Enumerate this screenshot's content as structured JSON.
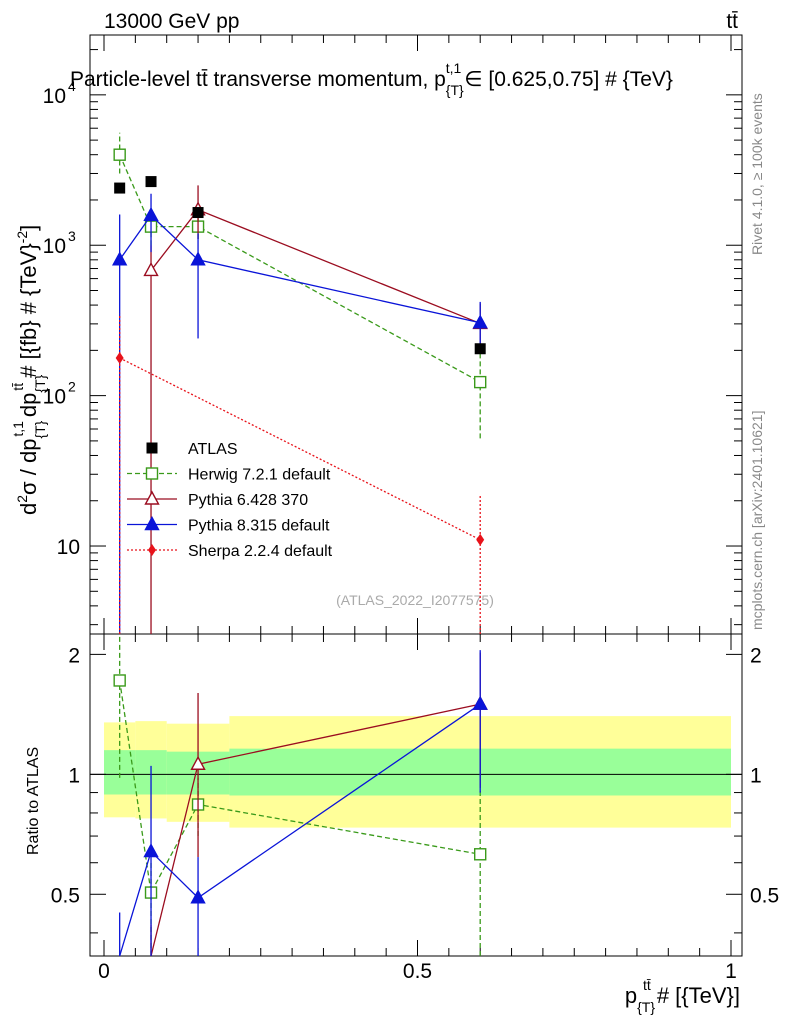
{
  "header": {
    "left": "13000 GeV pp",
    "right": "tt̄"
  },
  "title": {
    "main": "Particle-level tt̄ transverse momentum, p",
    "sub1": "{T}",
    "sup1": "t,1",
    "rest": "∈ [0.625,0.75] # {TeV}"
  },
  "side_labels": {
    "rivet": "Rivet 4.1.0, ≥ 100k events",
    "mcplots": "mcplots.cern.ch [arXiv:2401.10621]"
  },
  "watermark": "(ATLAS_2022_I2077575)",
  "ylabel_main": {
    "a": "d",
    "a_sup": "2",
    "b": "σ / dp",
    "b_sub": "{T}",
    "b_sup": "t,1",
    "c": "dp",
    "c_sub": "{T}",
    "c_sup": "tt̄",
    "d": "# [{fb} # {TeV}",
    "d_sup": "-2",
    "e": "]"
  },
  "ylabel_ratio": "Ratio to ATLAS",
  "xlabel": {
    "a": "p",
    "a_sub": "{T}",
    "a_sup": "tt̄",
    "b": "# [{TeV}]"
  },
  "main_ticks": {
    "labels": [
      {
        "value": 10,
        "text": "10"
      },
      {
        "value": 100,
        "base": "10",
        "exp": "2"
      },
      {
        "value": 1000,
        "base": "10",
        "exp": "3"
      },
      {
        "value": 10000,
        "base": "10",
        "exp": "4"
      }
    ]
  },
  "ratio_ticks": [
    {
      "value": 0.5,
      "text": "0.5"
    },
    {
      "value": 1,
      "text": "1"
    },
    {
      "value": 2,
      "text": "2"
    }
  ],
  "x_ticks": [
    {
      "value": 0,
      "text": "0"
    },
    {
      "value": 0.5,
      "text": "0.5"
    },
    {
      "value": 1,
      "text": "1"
    }
  ],
  "colors": {
    "atlas": "#000000",
    "herwig": "#3a9a1a",
    "pythia6": "#9b0d20",
    "pythia8": "#0a14d8",
    "sherpa": "#e8121a",
    "band_inner": "#99ff99",
    "band_outer": "#ffff99"
  },
  "chart_data": {
    "type": "scatter",
    "xlim": [
      0,
      1
    ],
    "ylim_main": [
      2.6,
      25000
    ],
    "yscale_main": "log",
    "ylim_ratio": [
      0.35,
      2.25
    ],
    "yscale_ratio": "log",
    "legend_position": "bottom-left",
    "bins": [
      {
        "lo": 0.0,
        "hi": 0.05
      },
      {
        "lo": 0.05,
        "hi": 0.1
      },
      {
        "lo": 0.1,
        "hi": 0.2
      },
      {
        "lo": 0.2,
        "hi": 1.0
      }
    ],
    "data": {
      "name": "ATLAS",
      "x": [
        0.025,
        0.075,
        0.15,
        0.6
      ],
      "y": [
        2400,
        2650,
        1650,
        205
      ]
    },
    "bands": {
      "inner": [
        {
          "lo": 0.0,
          "hi": 0.05,
          "down": 0.89,
          "up": 1.15
        },
        {
          "lo": 0.05,
          "hi": 0.1,
          "down": 0.89,
          "up": 1.15
        },
        {
          "lo": 0.1,
          "hi": 0.2,
          "down": 0.89,
          "up": 1.14
        },
        {
          "lo": 0.2,
          "hi": 1.0,
          "down": 0.885,
          "up": 1.16
        }
      ],
      "outer": [
        {
          "lo": 0.0,
          "hi": 0.05,
          "down": 0.78,
          "up": 1.35
        },
        {
          "lo": 0.05,
          "hi": 0.1,
          "down": 0.775,
          "up": 1.36
        },
        {
          "lo": 0.1,
          "hi": 0.2,
          "down": 0.76,
          "up": 1.34
        },
        {
          "lo": 0.2,
          "hi": 1.0,
          "down": 0.735,
          "up": 1.4
        }
      ]
    },
    "series": [
      {
        "name": "Herwig 7.2.1 default",
        "key": "herwig",
        "marker": "open-square",
        "dash": "5,3",
        "x": [
          0.025,
          0.075,
          0.15,
          0.6
        ],
        "y": [
          4000,
          1330,
          1330,
          123
        ],
        "err_lo": [
          3000,
          1000,
          1100,
          52
        ],
        "err_hi": [
          5600,
          1700,
          1600,
          195
        ],
        "ratio": [
          1.72,
          0.505,
          0.84,
          0.63
        ],
        "ratio_lo": [
          0.98,
          0.35,
          0.7,
          0.35
        ],
        "ratio_hi": [
          2.22,
          0.6,
          0.98,
          0.93
        ]
      },
      {
        "name": "Pythia 6.428 370",
        "key": "pythia6",
        "marker": "open-triangle",
        "dash": "",
        "x": [
          0.075,
          0.15,
          0.6
        ],
        "y": [
          680,
          1720,
          302
        ],
        "err_lo": [
          2.0,
          1100,
          220
        ],
        "err_hi": [
          1000,
          2500,
          410
        ],
        "ratio": [
          0.26,
          1.06,
          1.5
        ],
        "ratio_lo": [
          0.1,
          0.62,
          0.93
        ],
        "ratio_hi": [
          0.42,
          1.6,
          2.02
        ],
        "ratio_x": [
          0.075,
          0.15,
          0.6
        ]
      },
      {
        "name": "Pythia 8.315 default",
        "key": "pythia8",
        "marker": "filled-triangle",
        "dash": "",
        "x": [
          0.025,
          0.075,
          0.15,
          0.6
        ],
        "y": [
          800,
          1580,
          800,
          305
        ],
        "err_lo": [
          2.0,
          900,
          240,
          210
        ],
        "err_hi": [
          1600,
          2200,
          1200,
          420
        ],
        "ratio": [
          0.29,
          0.64,
          0.49,
          1.5
        ],
        "ratio_lo": [
          0.1,
          0.35,
          0.35,
          0.9
        ],
        "ratio_hi": [
          0.45,
          1.05,
          0.62,
          2.05
        ]
      },
      {
        "name": "Sherpa 2.2.4 default",
        "key": "sherpa",
        "marker": "filled-diamond",
        "dash": "2,2",
        "x": [
          0.025,
          0.6
        ],
        "y": [
          178,
          11
        ],
        "err_lo": [
          2.0,
          2.0
        ],
        "err_hi": [
          350,
          22
        ],
        "ratio": [],
        "ratio_lo": [],
        "ratio_hi": []
      }
    ]
  }
}
